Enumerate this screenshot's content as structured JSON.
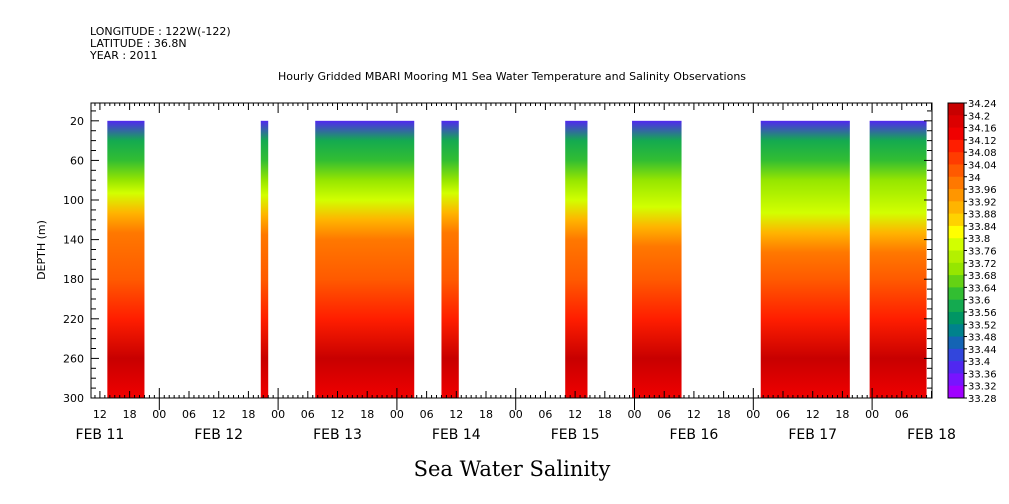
{
  "header": {
    "longitude": "LONGITUDE : 122W(-122)",
    "latitude": "LATITUDE : 36.8N",
    "year": "YEAR : 2011"
  },
  "chart_data": {
    "type": "heatmap",
    "title": "Hourly Gridded MBARI Mooring M1 Sea Water Temperature and Salinity Observations",
    "bottom_title": "Sea Water Salinity",
    "ylabel": "DEPTH (m)",
    "y_inverted": true,
    "ylim": [
      300,
      2
    ],
    "y_ticks": [
      20,
      60,
      100,
      140,
      180,
      220,
      260,
      300
    ],
    "x_hour_ticks": [
      {
        "day": 0,
        "hour": 12,
        "label": "12"
      },
      {
        "day": 0,
        "hour": 18,
        "label": "18"
      },
      {
        "day": 1,
        "hour": 0,
        "label": "00"
      },
      {
        "day": 1,
        "hour": 6,
        "label": "06"
      },
      {
        "day": 1,
        "hour": 12,
        "label": "12"
      },
      {
        "day": 1,
        "hour": 18,
        "label": "18"
      },
      {
        "day": 2,
        "hour": 0,
        "label": "00"
      },
      {
        "day": 2,
        "hour": 6,
        "label": "06"
      },
      {
        "day": 2,
        "hour": 12,
        "label": "12"
      },
      {
        "day": 2,
        "hour": 18,
        "label": "18"
      },
      {
        "day": 3,
        "hour": 0,
        "label": "00"
      },
      {
        "day": 3,
        "hour": 6,
        "label": "06"
      },
      {
        "day": 3,
        "hour": 12,
        "label": "12"
      },
      {
        "day": 3,
        "hour": 18,
        "label": "18"
      },
      {
        "day": 4,
        "hour": 0,
        "label": "00"
      },
      {
        "day": 4,
        "hour": 6,
        "label": "06"
      },
      {
        "day": 4,
        "hour": 12,
        "label": "12"
      },
      {
        "day": 4,
        "hour": 18,
        "label": "18"
      },
      {
        "day": 5,
        "hour": 0,
        "label": "00"
      },
      {
        "day": 5,
        "hour": 6,
        "label": "06"
      },
      {
        "day": 5,
        "hour": 12,
        "label": "12"
      },
      {
        "day": 5,
        "hour": 18,
        "label": "18"
      },
      {
        "day": 6,
        "hour": 0,
        "label": "00"
      },
      {
        "day": 6,
        "hour": 6,
        "label": "06"
      },
      {
        "day": 6,
        "hour": 12,
        "label": "12"
      },
      {
        "day": 6,
        "hour": 18,
        "label": "18"
      },
      {
        "day": 7,
        "hour": 0,
        "label": "00"
      },
      {
        "day": 7,
        "hour": 6,
        "label": "06"
      }
    ],
    "x_date_labels": [
      {
        "day": 0,
        "label": "FEB 11"
      },
      {
        "day": 1,
        "label": "FEB 12"
      },
      {
        "day": 2,
        "label": "FEB 13"
      },
      {
        "day": 3,
        "label": "FEB 14"
      },
      {
        "day": 4,
        "label": "FEB 15"
      },
      {
        "day": 5,
        "label": "FEB 16"
      },
      {
        "day": 6,
        "label": "FEB 17"
      },
      {
        "day": 7,
        "label": "FEB 18"
      }
    ],
    "colorbar_labels": [
      "34.24",
      "34.2",
      "34.16",
      "34.12",
      "34.08",
      "34.04",
      "34",
      "33.96",
      "33.92",
      "33.88",
      "33.84",
      "33.8",
      "33.76",
      "33.72",
      "33.68",
      "33.64",
      "33.6",
      "33.56",
      "33.52",
      "33.48",
      "33.44",
      "33.4",
      "33.36",
      "33.32",
      "33.28"
    ],
    "colorbar_colors": [
      "#c80000",
      "#dc0000",
      "#f00000",
      "#ff1e00",
      "#ff3c00",
      "#ff5a00",
      "#ff7800",
      "#ff9600",
      "#ffb400",
      "#ffd200",
      "#ffff00",
      "#d2ff00",
      "#b4f000",
      "#96e600",
      "#64d214",
      "#32be32",
      "#14aa50",
      "#009664",
      "#00828c",
      "#1464b4",
      "#3246dc",
      "#5028f0",
      "#7814ff",
      "#a000ff"
    ],
    "data_segments": [
      {
        "start": {
          "day": 0,
          "hour": 13.5
        },
        "end": {
          "day": 0,
          "hour": 21.0
        },
        "halocline_depth": 118
      },
      {
        "start": {
          "day": 1,
          "hour": 20.5
        },
        "end": {
          "day": 1,
          "hour": 22.0
        },
        "halocline_depth": 120
      },
      {
        "start": {
          "day": 2,
          "hour": 7.5
        },
        "end": {
          "day": 3,
          "hour": 3.5
        },
        "halocline_depth": 125
      },
      {
        "start": {
          "day": 3,
          "hour": 9.0
        },
        "end": {
          "day": 3,
          "hour": 12.5
        },
        "halocline_depth": 118
      },
      {
        "start": {
          "day": 4,
          "hour": 10.0
        },
        "end": {
          "day": 4,
          "hour": 14.5
        },
        "halocline_depth": 125
      },
      {
        "start": {
          "day": 4,
          "hour": 23.5
        },
        "end": {
          "day": 5,
          "hour": 9.5
        },
        "halocline_depth": 132
      },
      {
        "start": {
          "day": 6,
          "hour": 1.5
        },
        "end": {
          "day": 6,
          "hour": 19.5
        },
        "halocline_depth": 138
      },
      {
        "start": {
          "day": 6,
          "hour": 23.5
        },
        "end": {
          "day": 7,
          "hour": 11.0
        },
        "halocline_depth": 138
      }
    ],
    "salinity_profile": [
      {
        "depth": 20,
        "value": 33.4
      },
      {
        "depth": 40,
        "value": 33.56
      },
      {
        "depth": 60,
        "value": 33.64
      },
      {
        "depth": 80,
        "value": 33.72
      },
      {
        "depth": 100,
        "value": 33.78
      },
      {
        "depth": 120,
        "value": 33.9
      },
      {
        "depth": 140,
        "value": 34.0
      },
      {
        "depth": 180,
        "value": 34.04
      },
      {
        "depth": 220,
        "value": 34.12
      },
      {
        "depth": 260,
        "value": 34.2
      },
      {
        "depth": 300,
        "value": 34.16
      }
    ]
  }
}
